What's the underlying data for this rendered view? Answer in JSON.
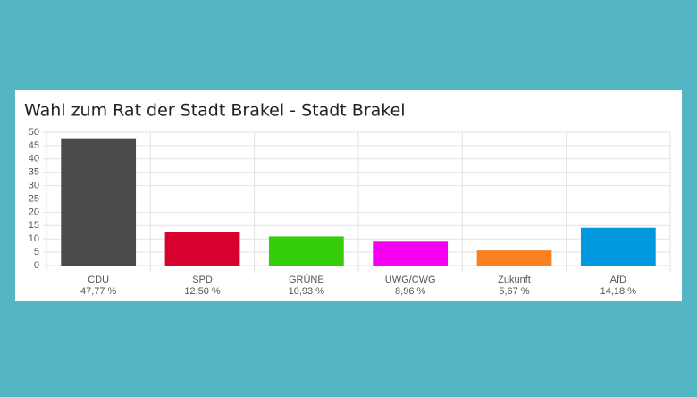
{
  "chart_data": {
    "type": "bar",
    "title": "Wahl zum Rat der Stadt Brakel - Stadt Brakel",
    "categories": [
      "CDU",
      "SPD",
      "GRÜNE",
      "UWG/CWG",
      "Zukunft",
      "AfD"
    ],
    "values": [
      47.77,
      12.5,
      10.93,
      8.96,
      5.67,
      14.18
    ],
    "value_labels": [
      "47,77 %",
      "12,50 %",
      "10,93 %",
      "8,96 %",
      "5,67 %",
      "14,18 %"
    ],
    "colors": [
      "#4a4a4a",
      "#d8002d",
      "#35cc0a",
      "#f500f0",
      "#fa8123",
      "#0099dd"
    ],
    "ylim": [
      0,
      50
    ],
    "yticks": [
      0,
      5,
      10,
      15,
      20,
      25,
      30,
      35,
      40,
      45,
      50
    ],
    "grid": true
  }
}
